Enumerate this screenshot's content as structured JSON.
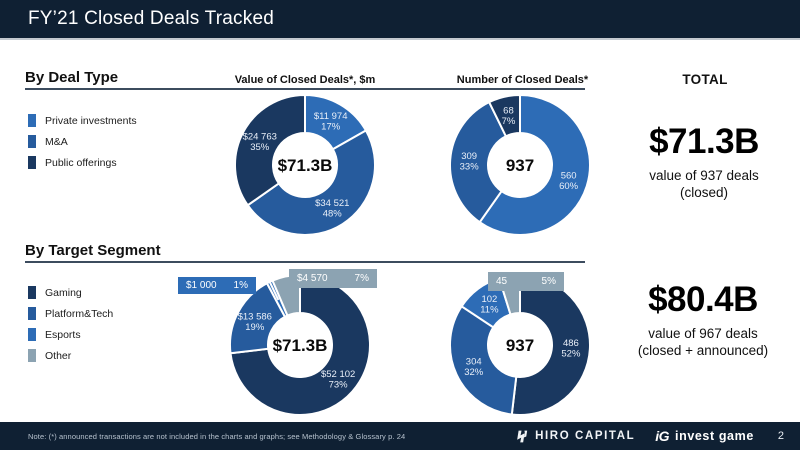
{
  "slide": {
    "title": "FY’21 Closed Deals Tracked",
    "page_number": "2"
  },
  "colors": {
    "header_bg": "#0f2033",
    "blue_bright": "#2d6cb6",
    "blue_mid": "#265b9d",
    "blue_navy": "#1a3860",
    "gray_other": "#8ca3b2",
    "teal_accent": "#7de2c3"
  },
  "columns": {
    "value_header": "Value of Closed Deals*, $m",
    "number_header": "Number of Closed Deals*",
    "total_header": "TOTAL"
  },
  "deal_type": {
    "heading": "By Deal Type",
    "legend": [
      {
        "label": "Private investments",
        "color": "#2d6cb6"
      },
      {
        "label": "M&A",
        "color": "#265b9d"
      },
      {
        "label": "Public offerings",
        "color": "#1a3860"
      }
    ],
    "total": {
      "value": "$71.3B",
      "line1": "value of 937 deals",
      "line2": "(closed)"
    }
  },
  "target_segment": {
    "heading": "By Target Segment",
    "legend": [
      {
        "label": "Gaming",
        "color": "#1a3860"
      },
      {
        "label": "Platform&Tech",
        "color": "#265b9d"
      },
      {
        "label": "Esports",
        "color": "#2d6cb6"
      },
      {
        "label": "Other",
        "color": "#8ca3b2"
      }
    ],
    "total": {
      "value": "$80.4B",
      "line1": "value of 967 deals",
      "line2": "(closed + announced)"
    }
  },
  "footer": {
    "note": "Note: (*) announced transactions are not included in the charts and graphs; see Methodology & Glossary p. 24",
    "hiro_label": "HIRO CAPITAL",
    "ig_mark": "iG",
    "ig_label": "invest game"
  },
  "chart_data": [
    {
      "id": "deal-type-value",
      "type": "pie",
      "section": "By Deal Type",
      "title": "Value of Closed Deals*, $m",
      "center_label": "$71.3B",
      "segments": [
        {
          "name": "Private investments",
          "value": 11974,
          "pct": 17,
          "label": "$11 974",
          "pct_label": "17%",
          "color": "#2d6cb6"
        },
        {
          "name": "M&A",
          "value": 34521,
          "pct": 48,
          "label": "$34 521",
          "pct_label": "48%",
          "color": "#265b9d"
        },
        {
          "name": "Public offerings",
          "value": 24763,
          "pct": 35,
          "label": "$24 763",
          "pct_label": "35%",
          "color": "#1a3860"
        }
      ]
    },
    {
      "id": "deal-type-number",
      "type": "pie",
      "section": "By Deal Type",
      "title": "Number of Closed Deals*",
      "center_label": "937",
      "segments": [
        {
          "name": "Private investments",
          "value": 560,
          "pct": 60,
          "label": "560",
          "pct_label": "60%",
          "color": "#2d6cb6"
        },
        {
          "name": "M&A",
          "value": 309,
          "pct": 33,
          "label": "309",
          "pct_label": "33%",
          "color": "#265b9d"
        },
        {
          "name": "Public offerings",
          "value": 68,
          "pct": 7,
          "label": "68",
          "pct_label": "7%",
          "color": "#1a3860"
        }
      ]
    },
    {
      "id": "target-segment-value",
      "type": "pie",
      "section": "By Target Segment",
      "title": "Value of Closed Deals*, $m",
      "center_label": "$71.3B",
      "segments": [
        {
          "name": "Gaming",
          "value": 52102,
          "pct": 73,
          "label": "$52 102",
          "pct_label": "73%",
          "color": "#1a3860"
        },
        {
          "name": "Platform&Tech",
          "value": 13586,
          "pct": 19,
          "label": "$13 586",
          "pct_label": "19%",
          "color": "#265b9d"
        },
        {
          "name": "Esports",
          "value": 1000,
          "pct": 1,
          "label": "$1 000",
          "pct_label": "1%",
          "color": "#2d6cb6",
          "callout": true,
          "leader": true
        },
        {
          "name": "Other",
          "value": 4570,
          "pct": 7,
          "label": "$4 570",
          "pct_label": "7%",
          "color": "#8ca3b2",
          "callout": true
        }
      ]
    },
    {
      "id": "target-segment-number",
      "type": "pie",
      "section": "By Target Segment",
      "title": "Number of Closed Deals*",
      "center_label": "937",
      "segments": [
        {
          "name": "Gaming",
          "value": 486,
          "pct": 52,
          "label": "486",
          "pct_label": "52%",
          "color": "#1a3860"
        },
        {
          "name": "Platform&Tech",
          "value": 304,
          "pct": 32,
          "label": "304",
          "pct_label": "32%",
          "color": "#265b9d"
        },
        {
          "name": "Esports",
          "value": 102,
          "pct": 11,
          "label": "102",
          "pct_label": "11%",
          "color": "#2d6cb6"
        },
        {
          "name": "Other",
          "value": 45,
          "pct": 5,
          "label": "45",
          "pct_label": "5%",
          "color": "#8ca3b2",
          "callout": true
        }
      ]
    }
  ]
}
